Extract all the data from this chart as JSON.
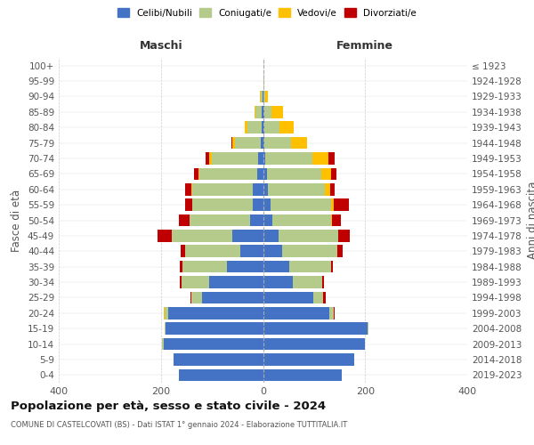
{
  "age_groups": [
    "0-4",
    "5-9",
    "10-14",
    "15-19",
    "20-24",
    "25-29",
    "30-34",
    "35-39",
    "40-44",
    "45-49",
    "50-54",
    "55-59",
    "60-64",
    "65-69",
    "70-74",
    "75-79",
    "80-84",
    "85-89",
    "90-94",
    "95-99",
    "100+"
  ],
  "birth_years": [
    "2019-2023",
    "2014-2018",
    "2009-2013",
    "2004-2008",
    "1999-2003",
    "1994-1998",
    "1989-1993",
    "1984-1988",
    "1979-1983",
    "1974-1978",
    "1969-1973",
    "1964-1968",
    "1959-1963",
    "1954-1958",
    "1949-1953",
    "1944-1948",
    "1939-1943",
    "1934-1938",
    "1929-1933",
    "1924-1928",
    "≤ 1923"
  ],
  "maschi": {
    "celibi": [
      165,
      175,
      195,
      190,
      185,
      120,
      105,
      70,
      45,
      60,
      25,
      20,
      20,
      12,
      10,
      5,
      3,
      2,
      1,
      0,
      0
    ],
    "coniugati": [
      0,
      0,
      2,
      3,
      8,
      20,
      55,
      88,
      108,
      118,
      118,
      118,
      118,
      112,
      90,
      50,
      28,
      12,
      3,
      0,
      0
    ],
    "vedovi": [
      0,
      0,
      0,
      0,
      2,
      0,
      0,
      0,
      0,
      0,
      0,
      1,
      2,
      3,
      5,
      5,
      4,
      3,
      2,
      0,
      0
    ],
    "divorziati": [
      0,
      0,
      0,
      0,
      0,
      2,
      3,
      5,
      8,
      28,
      22,
      14,
      12,
      8,
      8,
      2,
      0,
      0,
      0,
      0,
      0
    ]
  },
  "femmine": {
    "nubili": [
      155,
      178,
      200,
      205,
      130,
      98,
      58,
      52,
      38,
      30,
      18,
      15,
      10,
      7,
      4,
      3,
      2,
      2,
      0,
      0,
      0
    ],
    "coniugate": [
      0,
      0,
      0,
      2,
      8,
      20,
      58,
      82,
      108,
      118,
      115,
      118,
      112,
      108,
      92,
      52,
      30,
      15,
      5,
      2,
      0
    ],
    "vedove": [
      0,
      0,
      0,
      0,
      0,
      0,
      0,
      0,
      0,
      0,
      2,
      5,
      10,
      18,
      32,
      32,
      28,
      22,
      5,
      0,
      0
    ],
    "divorziate": [
      0,
      0,
      0,
      0,
      3,
      5,
      3,
      3,
      10,
      22,
      18,
      30,
      8,
      10,
      12,
      0,
      0,
      0,
      0,
      0,
      0
    ]
  },
  "colors": {
    "celibi": "#4472c4",
    "coniugati": "#b5cb8b",
    "vedovi": "#ffc000",
    "divorziati": "#c00000"
  },
  "xlim": 400,
  "title": "Popolazione per età, sesso e stato civile - 2024",
  "subtitle": "COMUNE DI CASTELCOVATI (BS) - Dati ISTAT 1° gennaio 2024 - Elaborazione TUTTITALIA.IT",
  "ylabel": "Fasce di età",
  "right_ylabel": "Anni di nascita",
  "legend_labels": [
    "Celibi/Nubili",
    "Coniugati/e",
    "Vedovi/e",
    "Divorziati/e"
  ],
  "maschi_label": "Maschi",
  "femmine_label": "Femmine",
  "xticks": [
    -400,
    -200,
    0,
    200,
    400
  ]
}
